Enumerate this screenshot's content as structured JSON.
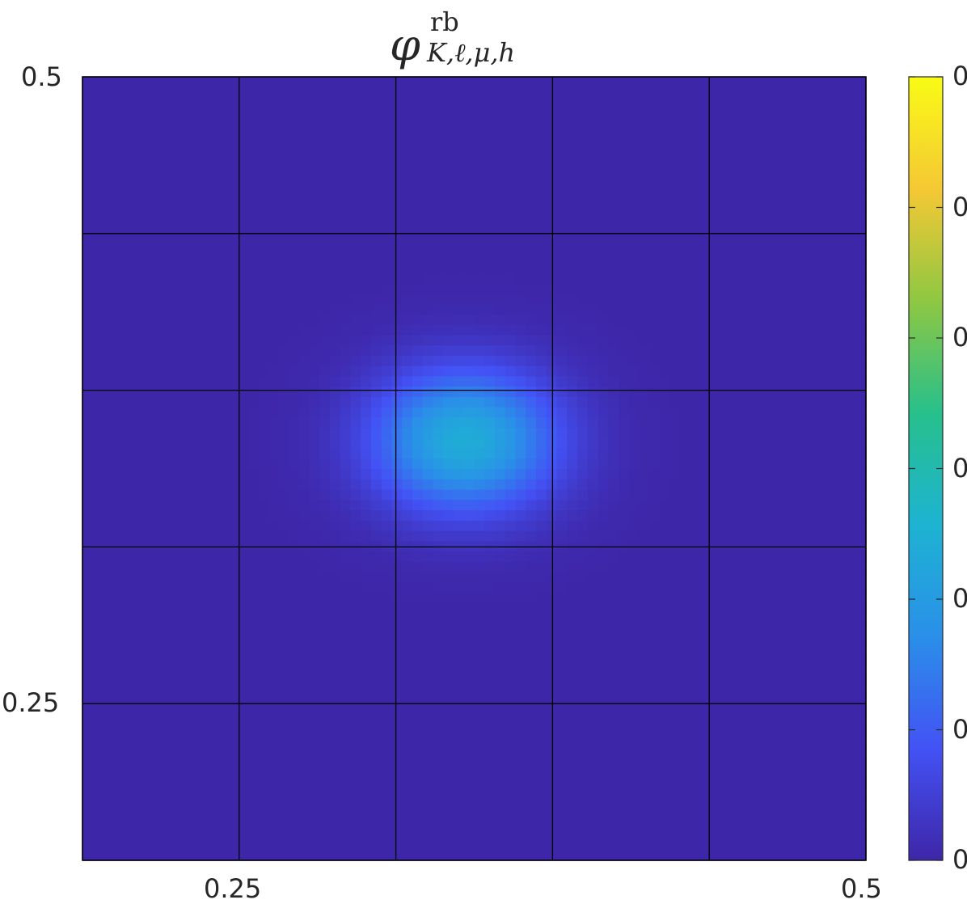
{
  "title": {
    "symbol": "φ",
    "superscript": "rb",
    "subscript": "K,ℓ,μ,h"
  },
  "axes": {
    "x_ticks": [
      "0.25",
      "0.5"
    ],
    "y_ticks": [
      "0.5",
      "0.25"
    ]
  },
  "colorbar": {
    "colormap": "parula",
    "tick_labels": [
      "0",
      "0",
      "0",
      "0",
      "0",
      "0",
      "0"
    ],
    "colors": [
      "#3e26a8",
      "#4352f5",
      "#2a8fe9",
      "#1db3d2",
      "#27c08b",
      "#8fc742",
      "#f5c834",
      "#f9fb15"
    ]
  },
  "chart_data": {
    "type": "heatmap",
    "title": "φ^rb_{K,ℓ,μ,h}",
    "xlabel": "",
    "ylabel": "",
    "xlim": [
      0.1875,
      0.5
    ],
    "ylim": [
      0.1875,
      0.5
    ],
    "x_ticks": [
      0.25,
      0.5
    ],
    "y_ticks": [
      0.25,
      0.5
    ],
    "grid_lines_x": [
      0.1875,
      0.25,
      0.3125,
      0.375,
      0.4375,
      0.5
    ],
    "grid_lines_y": [
      0.1875,
      0.25,
      0.3125,
      0.375,
      0.4375,
      0.5
    ],
    "peak": {
      "x": 0.34,
      "y": 0.355,
      "value": 0.4
    },
    "spread": {
      "sx": 0.026,
      "sy": 0.02
    },
    "color_range": [
      0,
      1
    ],
    "colorbar_ticks": 7
  }
}
